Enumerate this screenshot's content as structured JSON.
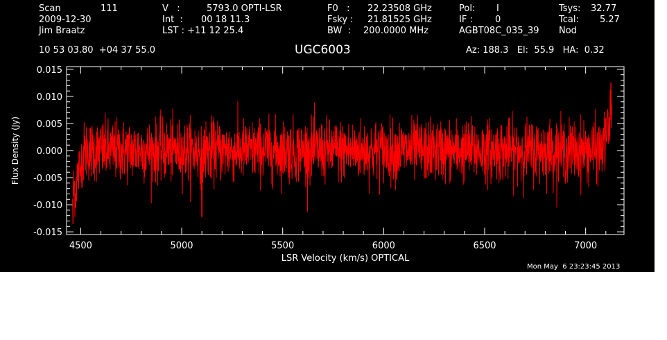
{
  "header": {
    "col1": [
      "Scan",
      "2009-12-30",
      "Jim Braatz"
    ],
    "scan_value": "111",
    "col2": [
      "V   :",
      "Int  :",
      "LST : +11 12 25.4"
    ],
    "col2_values": [
      "5793.0 OPTI-LSR",
      "00 18 11.3",
      ""
    ],
    "col3": [
      "F0   :",
      "Fsky :",
      "BW  :"
    ],
    "col3_values": [
      "22.23508 GHz",
      "21.81525 GHz",
      "200.0000 MHz"
    ],
    "col4": [
      "Pol:",
      "IF :",
      "AGBT08C_035_39"
    ],
    "col4_values": [
      "I",
      "0",
      ""
    ],
    "col5": [
      "Tsys:",
      "Tcal:",
      "Nod"
    ],
    "col5_values": [
      "32.77",
      "5.27",
      ""
    ],
    "coords": "10 53 03.80  +04 37 55.0",
    "source": "UGC6003",
    "azel": "Az: 188.3   El:  55.9   HA:  0.32",
    "timestamp": "Mon May  6 23:23:45 2013"
  },
  "chart_data": {
    "type": "line",
    "title": "UGC6003",
    "xlabel": "LSR Velocity (km/s) OPTICAL",
    "ylabel": "Flux Density (Jy)",
    "xlim": [
      4430,
      7190
    ],
    "ylim": [
      -0.0155,
      0.0155
    ],
    "xticks": [
      4500,
      5000,
      5500,
      6000,
      6500,
      7000
    ],
    "yticks": [
      -0.015,
      -0.01,
      -0.005,
      0.0,
      0.005,
      0.01,
      0.015
    ],
    "xtick_labels": [
      "4500",
      "5000",
      "5500",
      "6000",
      "6500",
      "7000"
    ],
    "ytick_labels": [
      "-0.015",
      "-0.010",
      "-0.005",
      "0.000",
      "0.005",
      "0.010",
      "0.015"
    ],
    "series": [
      {
        "color": "#ff0000",
        "x_start": 4460,
        "x_end": 7130,
        "rms_noise": 0.0028,
        "features": [
          {
            "x": 4462,
            "y": -0.0135
          },
          {
            "x": 4475,
            "y": -0.0105
          },
          {
            "x": 4500,
            "y": -0.003
          },
          {
            "x": 5100,
            "y": -0.0122
          },
          {
            "x": 7100,
            "y": 0.006
          },
          {
            "x": 7125,
            "y": 0.0125
          }
        ]
      }
    ]
  }
}
